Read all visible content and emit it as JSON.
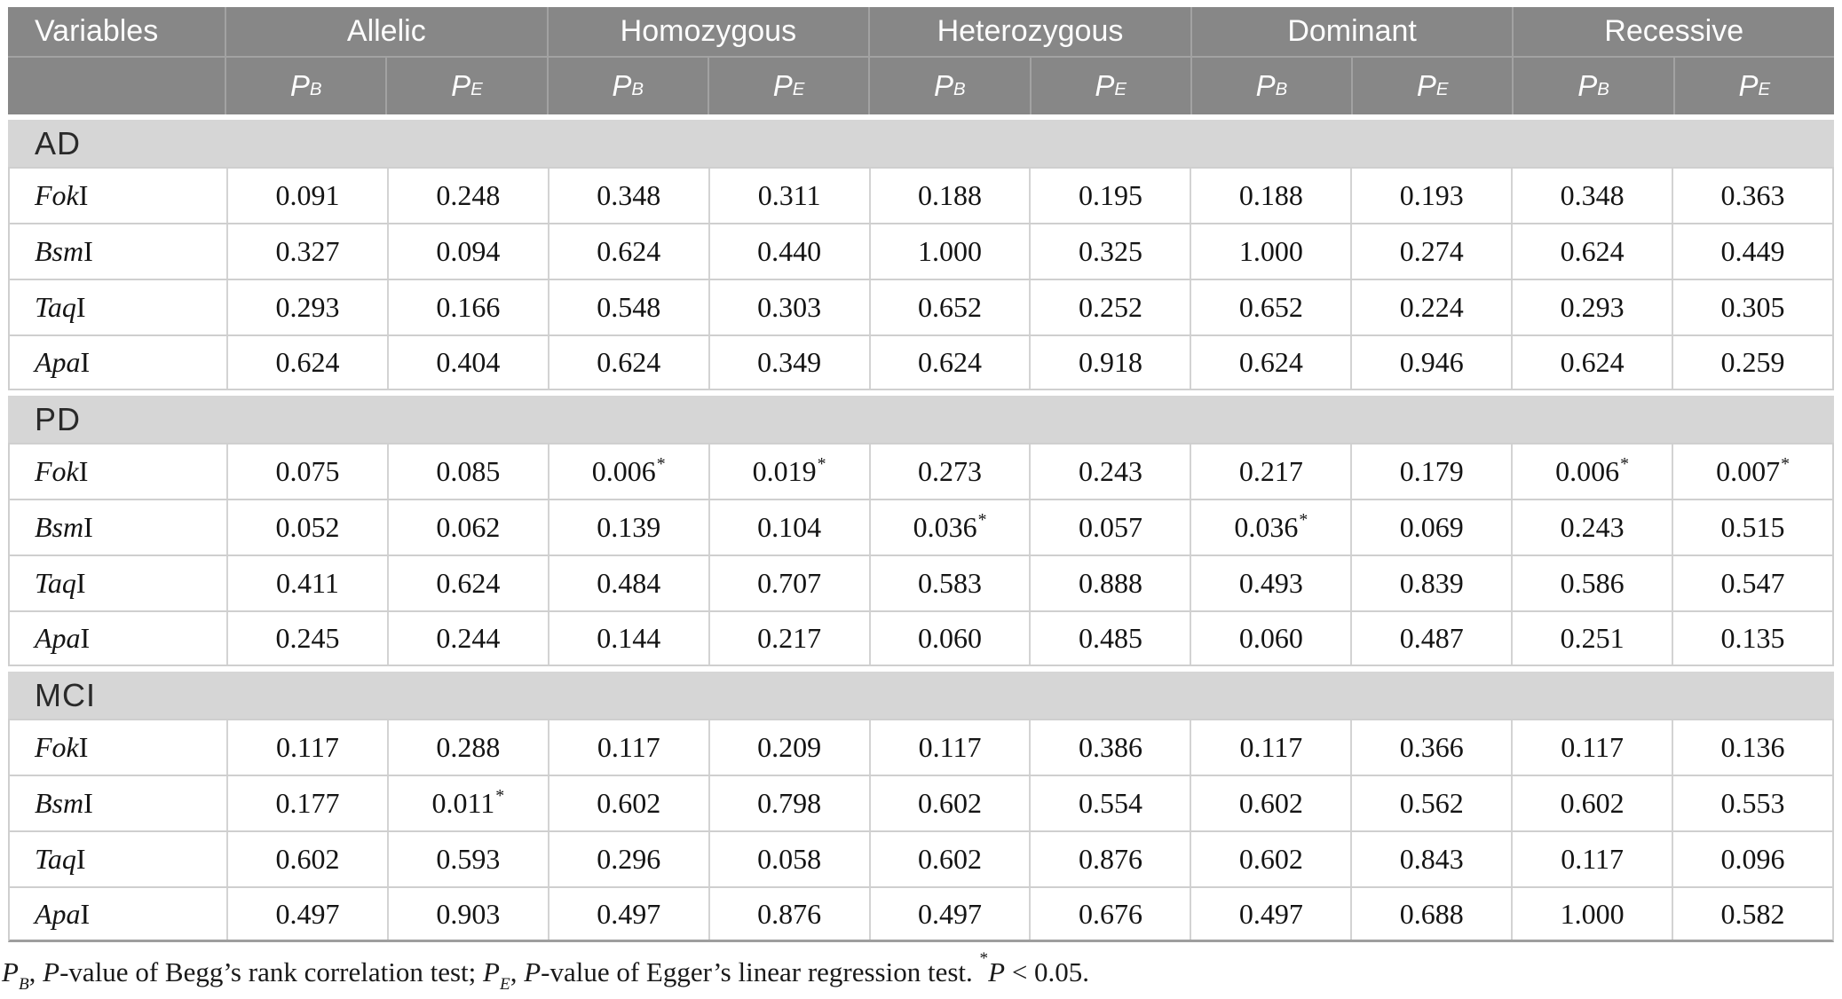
{
  "colors": {
    "header_bg": "#878787",
    "header_text": "#fdfdfd",
    "header_border": "#a2a2a2",
    "band_bg": "#d6d6d6",
    "row_border": "#cfcfcf",
    "bottom_border": "#9e9e9e"
  },
  "table": {
    "variables_label": "Variables",
    "groups": [
      "Allelic",
      "Homozygous",
      "Heterozygous",
      "Dominant",
      "Recessive"
    ],
    "subcols": [
      {
        "sym": "P",
        "sub": "B"
      },
      {
        "sym": "P",
        "sub": "E"
      },
      {
        "sym": "P",
        "sub": "B"
      },
      {
        "sym": "P",
        "sub": "E"
      },
      {
        "sym": "P",
        "sub": "B"
      },
      {
        "sym": "P",
        "sub": "E"
      },
      {
        "sym": "P",
        "sub": "B"
      },
      {
        "sym": "P",
        "sub": "E"
      },
      {
        "sym": "P",
        "sub": "B"
      },
      {
        "sym": "P",
        "sub": "E"
      }
    ],
    "sections": [
      {
        "label": "AD",
        "rows": [
          {
            "em": "Fok",
            "roman": "I",
            "values": [
              "0.091",
              "0.248",
              "0.348",
              "0.311",
              "0.188",
              "0.195",
              "0.188",
              "0.193",
              "0.348",
              "0.363"
            ]
          },
          {
            "em": "Bsm",
            "roman": "I",
            "values": [
              "0.327",
              "0.094",
              "0.624",
              "0.440",
              "1.000",
              "0.325",
              "1.000",
              "0.274",
              "0.624",
              "0.449"
            ]
          },
          {
            "em": "Taq",
            "roman": "I",
            "values": [
              "0.293",
              "0.166",
              "0.548",
              "0.303",
              "0.652",
              "0.252",
              "0.652",
              "0.224",
              "0.293",
              "0.305"
            ]
          },
          {
            "em": "Apa",
            "roman": "I",
            "values": [
              "0.624",
              "0.404",
              "0.624",
              "0.349",
              "0.624",
              "0.918",
              "0.624",
              "0.946",
              "0.624",
              "0.259"
            ]
          }
        ]
      },
      {
        "label": "PD",
        "rows": [
          {
            "em": "Fok",
            "roman": "I",
            "values": [
              "0.075",
              "0.085",
              "0.006*",
              "0.019*",
              "0.273",
              "0.243",
              "0.217",
              "0.179",
              "0.006*",
              "0.007*"
            ]
          },
          {
            "em": "Bsm",
            "roman": "I",
            "values": [
              "0.052",
              "0.062",
              "0.139",
              "0.104",
              "0.036*",
              "0.057",
              "0.036*",
              "0.069",
              "0.243",
              "0.515"
            ]
          },
          {
            "em": "Taq",
            "roman": "I",
            "values": [
              "0.411",
              "0.624",
              "0.484",
              "0.707",
              "0.583",
              "0.888",
              "0.493",
              "0.839",
              "0.586",
              "0.547"
            ]
          },
          {
            "em": "Apa",
            "roman": "I",
            "values": [
              "0.245",
              "0.244",
              "0.144",
              "0.217",
              "0.060",
              "0.485",
              "0.060",
              "0.487",
              "0.251",
              "0.135"
            ]
          }
        ]
      },
      {
        "label": "MCI",
        "rows": [
          {
            "em": "Fok",
            "roman": "I",
            "values": [
              "0.117",
              "0.288",
              "0.117",
              "0.209",
              "0.117",
              "0.386",
              "0.117",
              "0.366",
              "0.117",
              "0.136"
            ]
          },
          {
            "em": "Bsm",
            "roman": "I",
            "values": [
              "0.177",
              "0.011*",
              "0.602",
              "0.798",
              "0.602",
              "0.554",
              "0.602",
              "0.562",
              "0.602",
              "0.553"
            ]
          },
          {
            "em": "Taq",
            "roman": "I",
            "values": [
              "0.602",
              "0.593",
              "0.296",
              "0.058",
              "0.602",
              "0.876",
              "0.602",
              "0.843",
              "0.117",
              "0.096"
            ]
          },
          {
            "em": "Apa",
            "roman": "I",
            "values": [
              "0.497",
              "0.903",
              "0.497",
              "0.876",
              "0.497",
              "0.676",
              "0.497",
              "0.688",
              "1.000",
              "0.582"
            ]
          }
        ]
      }
    ],
    "footnote_segments": [
      {
        "t": "P",
        "style": "italic"
      },
      {
        "t": "B",
        "style": "sub"
      },
      {
        "t": ", ",
        "style": "normal"
      },
      {
        "t": "P",
        "style": "italic"
      },
      {
        "t": "-value of Begg’s rank correlation test; ",
        "style": "normal"
      },
      {
        "t": "P",
        "style": "italic"
      },
      {
        "t": "E",
        "style": "sub"
      },
      {
        "t": ", ",
        "style": "normal"
      },
      {
        "t": "P",
        "style": "italic"
      },
      {
        "t": "-value of Egger’s linear regression test. ",
        "style": "normal"
      },
      {
        "t": "*",
        "style": "sup"
      },
      {
        "t": "P",
        "style": "italic"
      },
      {
        "t": " < 0.05.",
        "style": "normal"
      }
    ]
  }
}
